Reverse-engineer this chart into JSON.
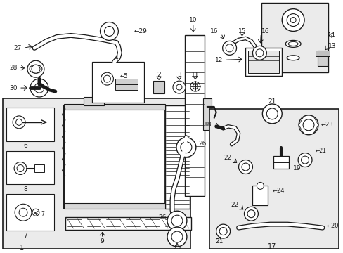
{
  "bg_color": "#ffffff",
  "lc": "#1a1a1a",
  "fig_w": 4.89,
  "fig_h": 3.6,
  "dpi": 100
}
